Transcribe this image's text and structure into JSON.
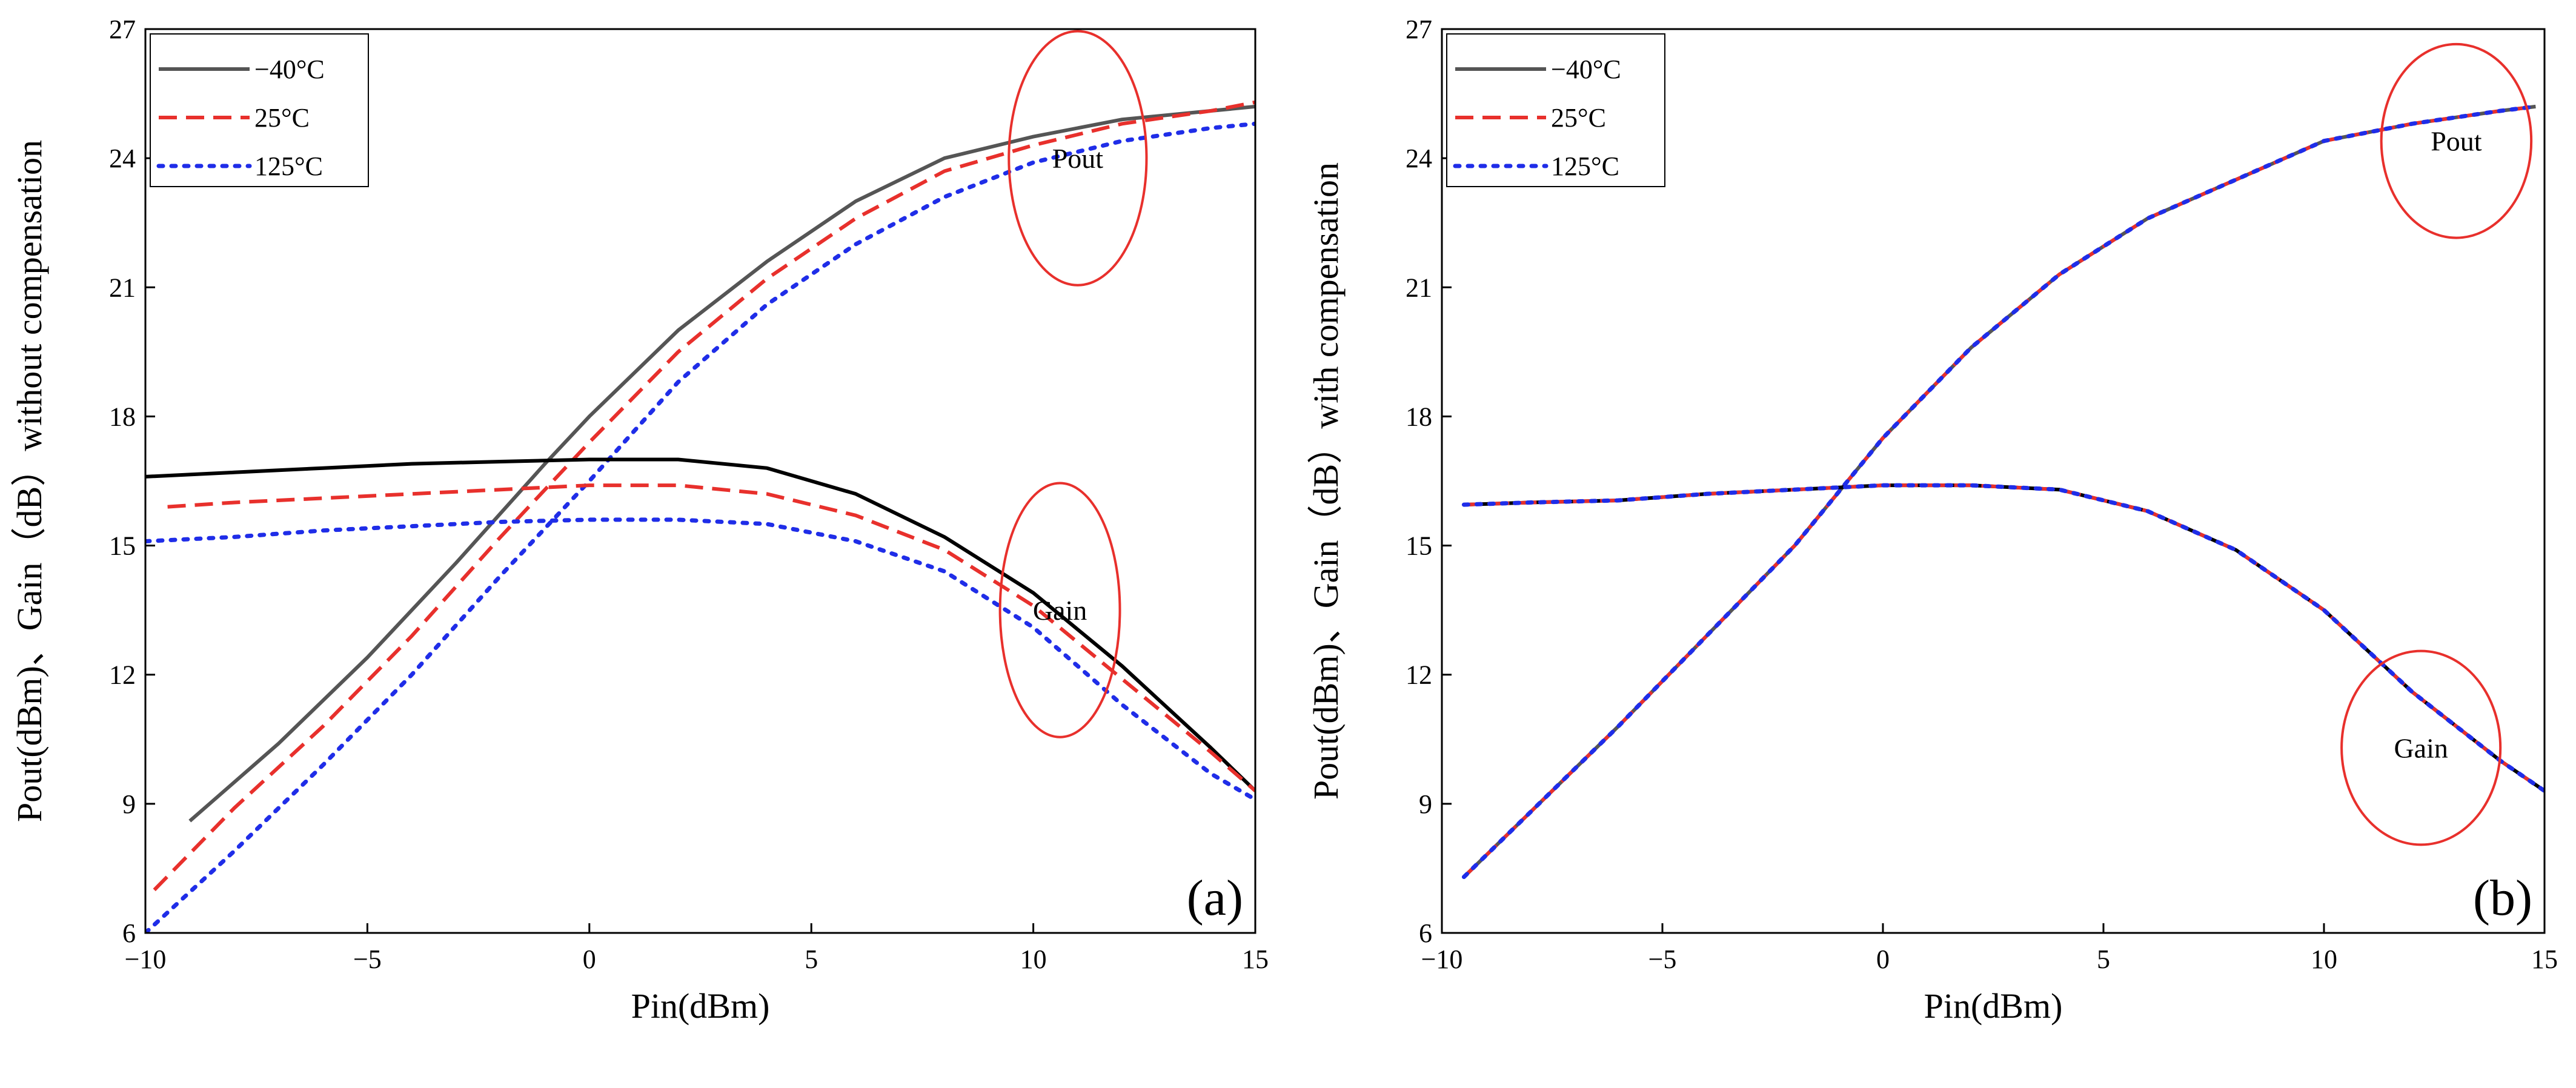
{
  "chart_data": [
    {
      "id": "a",
      "type": "line",
      "panel_label": "(a)",
      "xlabel": "Pin(dBm)",
      "ylabel": "Pout(dBm)、Gain（dB）without compensation",
      "xlim": [
        -10,
        15
      ],
      "ylim": [
        6,
        27
      ],
      "xticks": [
        -10,
        -5,
        0,
        5,
        10,
        15
      ],
      "xtick_labels": [
        "−10",
        "−5",
        "0",
        "5",
        "10",
        "15"
      ],
      "yticks": [
        6,
        9,
        12,
        15,
        18,
        21,
        24,
        27
      ],
      "legend": {
        "position": "top-left",
        "entries": [
          "−40°C",
          "25°C",
          "125°C"
        ]
      },
      "annotations": [
        {
          "text": "Pout",
          "x": 11.0,
          "y": 24.0
        },
        {
          "text": "Gain",
          "x": 10.6,
          "y": 13.5
        }
      ],
      "series": [
        {
          "name": "−40°C",
          "quantity": "Pout",
          "color": "#555555",
          "style": "solid",
          "x": [
            -9,
            -7,
            -5,
            -3,
            -1,
            0,
            2,
            4,
            6,
            8,
            10,
            12,
            14,
            15
          ],
          "y": [
            8.6,
            10.4,
            12.4,
            14.6,
            16.9,
            18.0,
            20.0,
            21.6,
            23.0,
            24.0,
            24.5,
            24.9,
            25.1,
            25.2
          ]
        },
        {
          "name": "25°C",
          "quantity": "Pout",
          "color": "#e8302c",
          "style": "dashed",
          "x": [
            -9.8,
            -8,
            -6,
            -4,
            -2,
            0,
            2,
            4,
            6,
            8,
            10,
            12,
            14,
            15
          ],
          "y": [
            7.0,
            8.9,
            10.8,
            12.9,
            15.2,
            17.4,
            19.5,
            21.2,
            22.6,
            23.7,
            24.3,
            24.8,
            25.1,
            25.3
          ]
        },
        {
          "name": "125°C",
          "quantity": "Pout",
          "color": "#1f2de8",
          "style": "dotted",
          "x": [
            -10,
            -8,
            -6,
            -4,
            -2,
            0,
            2,
            4,
            6,
            8,
            10,
            12,
            14,
            15
          ],
          "y": [
            6.0,
            7.9,
            9.9,
            12.0,
            14.3,
            16.5,
            18.8,
            20.6,
            22.0,
            23.1,
            23.9,
            24.4,
            24.7,
            24.8
          ]
        },
        {
          "name": "−40°C",
          "quantity": "Gain",
          "color": "#000000",
          "style": "solid",
          "x": [
            -10,
            -8,
            -6,
            -4,
            -2,
            0,
            2,
            4,
            6,
            8,
            10,
            12,
            14,
            15
          ],
          "y": [
            16.6,
            16.7,
            16.8,
            16.9,
            16.95,
            17.0,
            17.0,
            16.8,
            16.2,
            15.2,
            13.9,
            12.2,
            10.3,
            9.3
          ]
        },
        {
          "name": "25°C",
          "quantity": "Gain",
          "color": "#e8302c",
          "style": "dashed",
          "x": [
            -9.5,
            -8,
            -6,
            -4,
            -2,
            0,
            2,
            4,
            6,
            8,
            10,
            12,
            14,
            15
          ],
          "y": [
            15.9,
            16.0,
            16.1,
            16.2,
            16.3,
            16.4,
            16.4,
            16.2,
            15.7,
            14.9,
            13.6,
            11.9,
            10.2,
            9.3
          ]
        },
        {
          "name": "125°C",
          "quantity": "Gain",
          "color": "#1f2de8",
          "style": "dotted",
          "x": [
            -10,
            -8,
            -6,
            -4,
            -2,
            0,
            2,
            4,
            6,
            8,
            10,
            12,
            14,
            15
          ],
          "y": [
            15.1,
            15.2,
            15.35,
            15.45,
            15.55,
            15.6,
            15.6,
            15.5,
            15.1,
            14.4,
            13.1,
            11.3,
            9.7,
            9.1
          ]
        }
      ]
    },
    {
      "id": "b",
      "type": "line",
      "panel_label": "(b)",
      "xlabel": "Pin(dBm)",
      "ylabel": "Pout(dBm)、Gain（dB）with compensation",
      "xlim": [
        -10,
        15
      ],
      "ylim": [
        6,
        27
      ],
      "xticks": [
        -10,
        -5,
        0,
        5,
        10,
        15
      ],
      "xtick_labels": [
        "−10",
        "−5",
        "0",
        "5",
        "10",
        "15"
      ],
      "yticks": [
        6,
        9,
        12,
        15,
        18,
        21,
        24,
        27
      ],
      "legend": {
        "position": "top-left",
        "entries": [
          "−40°C",
          "25°C",
          "125°C"
        ]
      },
      "annotations": [
        {
          "text": "Pout",
          "x": 13.0,
          "y": 24.4
        },
        {
          "text": "Gain",
          "x": 12.2,
          "y": 10.3
        }
      ],
      "series": [
        {
          "name": "−40°C",
          "quantity": "Pout",
          "color": "#555555",
          "style": "solid",
          "x": [
            -9.5,
            -8,
            -6,
            -4,
            -2,
            0,
            2,
            4,
            6,
            8,
            10,
            12,
            14,
            14.8
          ],
          "y": [
            7.3,
            8.8,
            10.8,
            12.9,
            15.0,
            17.5,
            19.6,
            21.3,
            22.6,
            23.5,
            24.4,
            24.8,
            25.1,
            25.2
          ]
        },
        {
          "name": "25°C",
          "quantity": "Pout",
          "color": "#e8302c",
          "style": "dashed",
          "x": [
            -9.5,
            -8,
            -6,
            -4,
            -2,
            0,
            2,
            4,
            6,
            8,
            10,
            12,
            14,
            14.8
          ],
          "y": [
            7.3,
            8.8,
            10.8,
            12.9,
            15.0,
            17.5,
            19.6,
            21.3,
            22.6,
            23.5,
            24.4,
            24.8,
            25.1,
            25.2
          ]
        },
        {
          "name": "125°C",
          "quantity": "Pout",
          "color": "#1f2de8",
          "style": "dotted",
          "x": [
            -9.5,
            -8,
            -6,
            -4,
            -2,
            0,
            2,
            4,
            6,
            8,
            10,
            12,
            14,
            14.8
          ],
          "y": [
            7.3,
            8.8,
            10.8,
            12.9,
            15.0,
            17.5,
            19.6,
            21.3,
            22.6,
            23.5,
            24.4,
            24.8,
            25.1,
            25.2
          ]
        },
        {
          "name": "−40°C",
          "quantity": "Gain",
          "color": "#000000",
          "style": "solid",
          "x": [
            -9.5,
            -8,
            -6,
            -4,
            -2,
            0,
            2,
            4,
            6,
            8,
            10,
            12,
            14,
            15
          ],
          "y": [
            15.95,
            16.0,
            16.05,
            16.2,
            16.3,
            16.4,
            16.4,
            16.3,
            15.8,
            14.9,
            13.5,
            11.6,
            10.0,
            9.3
          ]
        },
        {
          "name": "25°C",
          "quantity": "Gain",
          "color": "#e8302c",
          "style": "dashed",
          "x": [
            -9.5,
            -8,
            -6,
            -4,
            -2,
            0,
            2,
            4,
            6,
            8,
            10,
            12,
            14,
            15
          ],
          "y": [
            15.95,
            16.0,
            16.05,
            16.2,
            16.3,
            16.4,
            16.4,
            16.3,
            15.8,
            14.9,
            13.5,
            11.6,
            10.0,
            9.3
          ]
        },
        {
          "name": "125°C",
          "quantity": "Gain",
          "color": "#1f2de8",
          "style": "dotted",
          "x": [
            -9.5,
            -8,
            -6,
            -4,
            -2,
            0,
            2,
            4,
            6,
            8,
            10,
            12,
            14,
            15
          ],
          "y": [
            15.95,
            16.0,
            16.05,
            16.2,
            16.3,
            16.4,
            16.4,
            16.3,
            15.8,
            14.9,
            13.5,
            11.6,
            10.0,
            9.3
          ]
        }
      ]
    }
  ]
}
